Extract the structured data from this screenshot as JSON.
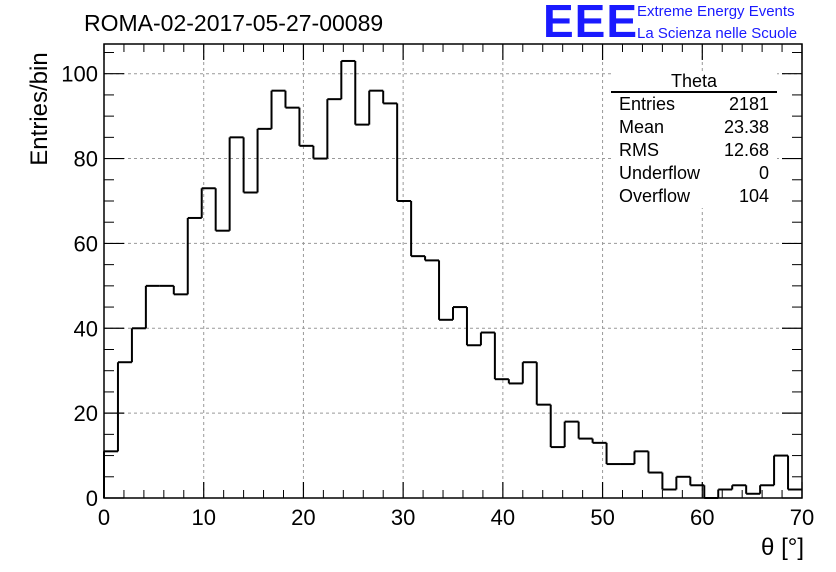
{
  "header": {
    "run_title": "ROMA-02-2017-05-27-00089",
    "logo_mark": "EEE",
    "logo_line1": "Extreme Energy Events",
    "logo_line2": "La Scienza nelle Scuole"
  },
  "stats_box": {
    "title": "Theta",
    "rows": [
      {
        "label": "Entries",
        "value": "2181"
      },
      {
        "label": "Mean",
        "value": "23.38"
      },
      {
        "label": "RMS",
        "value": "12.68"
      },
      {
        "label": "Underflow",
        "value": "0"
      },
      {
        "label": "Overflow",
        "value": "104"
      }
    ]
  },
  "chart_data": {
    "type": "histogram",
    "xlabel": "θ [°]",
    "ylabel": "Entries/bin",
    "xlim": [
      0,
      70
    ],
    "ylim": [
      0,
      107
    ],
    "bin_width": 1.4,
    "x_ticks": [
      0,
      10,
      20,
      30,
      40,
      50,
      60,
      70
    ],
    "y_ticks": [
      0,
      20,
      40,
      60,
      80,
      100
    ],
    "grid": true,
    "line_color": "#000000",
    "values": [
      11,
      32,
      40,
      50,
      50,
      48,
      66,
      73,
      63,
      85,
      72,
      87,
      96,
      92,
      83,
      80,
      94,
      103,
      88,
      96,
      93,
      70,
      57,
      56,
      42,
      45,
      36,
      39,
      28,
      27,
      32,
      22,
      12,
      18,
      14,
      13,
      8,
      8,
      11,
      6,
      2,
      5,
      3,
      0,
      2,
      3,
      1,
      3,
      10,
      2
    ]
  }
}
